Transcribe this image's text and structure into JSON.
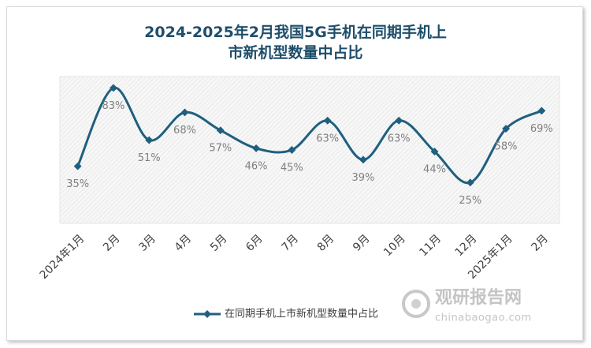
{
  "chart_data": {
    "type": "line",
    "title": "2024-2025年2月我国5G手机在同期手机上市新机型数量中占比",
    "categories": [
      "2024年1月",
      "2月",
      "3月",
      "4月",
      "5月",
      "6月",
      "7月",
      "8月",
      "9月",
      "10月",
      "11月",
      "12月",
      "2025年1月",
      "2月"
    ],
    "series": [
      {
        "name": "在同期手机上市新机型数量中占比",
        "color": "#1f5f7f",
        "values": [
          35,
          83,
          51,
          68,
          57,
          46,
          45,
          63,
          39,
          63,
          44,
          25,
          58,
          69
        ],
        "value_labels": [
          "35%",
          "83%",
          "51%",
          "68%",
          "57%",
          "46%",
          "45%",
          "63%",
          "39%",
          "63%",
          "44%",
          "25%",
          "58%",
          "69%"
        ]
      }
    ],
    "ylim": [
      0,
      90
    ],
    "watermark": {
      "name": "观研报告网",
      "url": "chinabaogao.com"
    }
  }
}
